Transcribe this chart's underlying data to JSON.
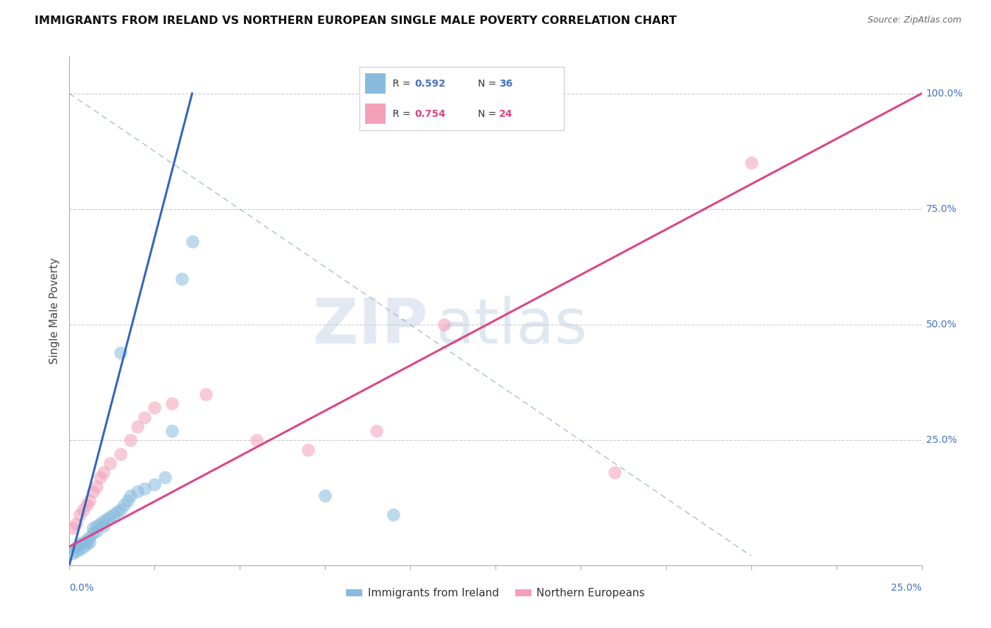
{
  "title": "IMMIGRANTS FROM IRELAND VS NORTHERN EUROPEAN SINGLE MALE POVERTY CORRELATION CHART",
  "source": "Source: ZipAtlas.com",
  "ylabel": "Single Male Poverty",
  "xlim": [
    0.0,
    0.25
  ],
  "ylim": [
    -0.02,
    1.08
  ],
  "blue_R": 0.592,
  "blue_N": 36,
  "pink_R": 0.754,
  "pink_N": 24,
  "blue_color": "#88bbdd",
  "pink_color": "#f4a0b8",
  "blue_line_color": "#3366bb",
  "pink_line_color": "#dd4488",
  "ref_line_color": "#99aacc",
  "legend_label_blue": "Immigrants from Ireland",
  "legend_label_pink": "Northern Europeans",
  "watermark_zip": "ZIP",
  "watermark_atlas": "atlas",
  "grid_color": "#cccccc",
  "blue_dots": [
    [
      0.001,
      0.005
    ],
    [
      0.002,
      0.01
    ],
    [
      0.002,
      0.02
    ],
    [
      0.003,
      0.015
    ],
    [
      0.003,
      0.025
    ],
    [
      0.004,
      0.02
    ],
    [
      0.004,
      0.03
    ],
    [
      0.005,
      0.025
    ],
    [
      0.005,
      0.035
    ],
    [
      0.006,
      0.03
    ],
    [
      0.006,
      0.04
    ],
    [
      0.007,
      0.05
    ],
    [
      0.007,
      0.06
    ],
    [
      0.008,
      0.055
    ],
    [
      0.008,
      0.065
    ],
    [
      0.009,
      0.07
    ],
    [
      0.01,
      0.065
    ],
    [
      0.01,
      0.075
    ],
    [
      0.011,
      0.08
    ],
    [
      0.012,
      0.085
    ],
    [
      0.013,
      0.09
    ],
    [
      0.014,
      0.095
    ],
    [
      0.015,
      0.1
    ],
    [
      0.016,
      0.11
    ],
    [
      0.017,
      0.12
    ],
    [
      0.018,
      0.13
    ],
    [
      0.02,
      0.14
    ],
    [
      0.022,
      0.145
    ],
    [
      0.025,
      0.155
    ],
    [
      0.028,
      0.17
    ],
    [
      0.03,
      0.27
    ],
    [
      0.033,
      0.6
    ],
    [
      0.036,
      0.68
    ],
    [
      0.075,
      0.13
    ],
    [
      0.095,
      0.09
    ],
    [
      0.015,
      0.44
    ]
  ],
  "pink_dots": [
    [
      0.001,
      0.06
    ],
    [
      0.002,
      0.07
    ],
    [
      0.003,
      0.09
    ],
    [
      0.004,
      0.1
    ],
    [
      0.005,
      0.11
    ],
    [
      0.006,
      0.12
    ],
    [
      0.007,
      0.14
    ],
    [
      0.008,
      0.15
    ],
    [
      0.009,
      0.17
    ],
    [
      0.01,
      0.18
    ],
    [
      0.012,
      0.2
    ],
    [
      0.015,
      0.22
    ],
    [
      0.018,
      0.25
    ],
    [
      0.02,
      0.28
    ],
    [
      0.022,
      0.3
    ],
    [
      0.025,
      0.32
    ],
    [
      0.03,
      0.33
    ],
    [
      0.04,
      0.35
    ],
    [
      0.055,
      0.25
    ],
    [
      0.07,
      0.23
    ],
    [
      0.09,
      0.27
    ],
    [
      0.11,
      0.5
    ],
    [
      0.16,
      0.18
    ],
    [
      0.2,
      0.85
    ]
  ],
  "blue_line": [
    [
      0.0,
      -0.02
    ],
    [
      0.036,
      1.0
    ]
  ],
  "pink_line": [
    [
      0.0,
      0.02
    ],
    [
      0.25,
      1.0
    ]
  ],
  "ref_line": [
    [
      0.0,
      1.0
    ],
    [
      0.2,
      0.0
    ]
  ],
  "ytick_positions": [
    0.0,
    0.25,
    0.5,
    0.75,
    1.0
  ],
  "ytick_right_labels": [
    "",
    "25.0%",
    "50.0%",
    "75.0%",
    "100.0%"
  ]
}
